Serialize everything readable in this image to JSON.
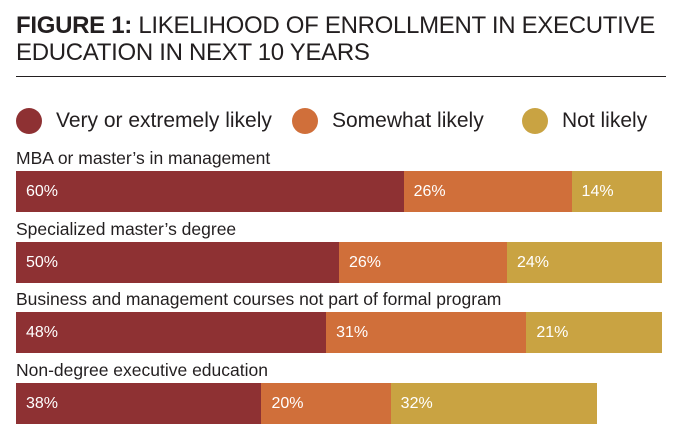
{
  "title": {
    "bold": "FIGURE 1:",
    "rest": " LIKELIHOOD OF ENROLLMENT IN EXECUTIVE EDUCATION IN NEXT 10 YEARS"
  },
  "chart_data": {
    "type": "bar",
    "orientation": "horizontal",
    "stacked": true,
    "title": "FIGURE 1: LIKELIHOOD OF ENROLLMENT IN EXECUTIVE EDUCATION IN NEXT 10 YEARS",
    "categories": [
      "MBA or master’s in management",
      "Specialized master’s degree",
      "Business and management courses not part of formal program",
      "Non-degree executive education"
    ],
    "series": [
      {
        "name": "Very or extremely likely",
        "color": "#8e3133",
        "values": [
          60,
          50,
          48,
          38
        ]
      },
      {
        "name": "Somewhat likely",
        "color": "#d06f3a",
        "values": [
          26,
          26,
          31,
          20
        ]
      },
      {
        "name": "Not likely",
        "color": "#c9a342",
        "values": [
          14,
          24,
          21,
          32
        ]
      }
    ],
    "value_suffix": "%",
    "xlim": [
      0,
      100
    ],
    "legend_position": "top",
    "grid": false
  }
}
